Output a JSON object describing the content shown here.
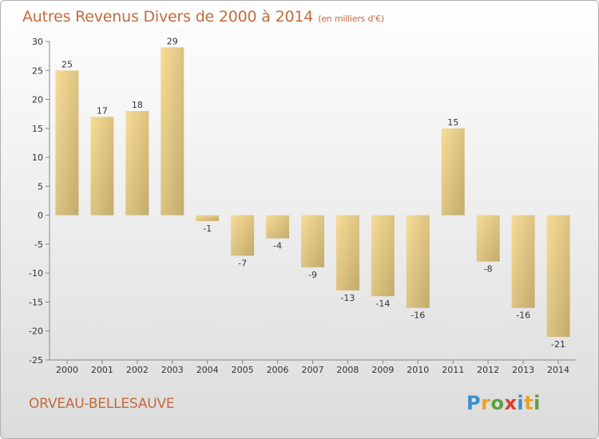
{
  "title": "Autres Revenus Divers de 2000 à 2014",
  "subtitle": "(en milliers d'€)",
  "commune": "ORVEAU-BELLESAUVE",
  "logo": {
    "letters": [
      "P",
      "r",
      "o",
      "x",
      "i",
      "t",
      "i"
    ],
    "colors": [
      "#3b8fd0",
      "#e8a41c",
      "#5aa23c",
      "#e23b2a",
      "#3b8fd0",
      "#e8a41c",
      "#5aa23c"
    ]
  },
  "colors": {
    "title": "#c36a3c",
    "bar_light": "#f7dc96",
    "bar_dark": "#c2ab6c"
  },
  "chart_data": {
    "type": "bar",
    "categories": [
      "2000",
      "2001",
      "2002",
      "2003",
      "2004",
      "2005",
      "2006",
      "2007",
      "2008",
      "2009",
      "2010",
      "2011",
      "2012",
      "2013",
      "2014"
    ],
    "values": [
      25,
      17,
      18,
      29,
      -1,
      -7,
      -4,
      -9,
      -13,
      -14,
      -16,
      15,
      -8,
      -16,
      -21
    ],
    "value_labels": [
      "25",
      "17",
      "18",
      "29",
      "-1",
      "-7",
      "-4",
      "-9",
      "-13",
      "-14",
      "-16",
      "15",
      "-8",
      "-16",
      "-21"
    ],
    "yticks": [
      30,
      25,
      20,
      15,
      10,
      5,
      0,
      -5,
      -10,
      -15,
      -20,
      -25
    ],
    "ytick_labels": [
      "30",
      "25",
      "20",
      "15",
      "10",
      "5",
      "0",
      "-5",
      "-10",
      "-15",
      "-20",
      "-25"
    ],
    "ylim": [
      -25,
      30
    ],
    "grid": false,
    "legend": "none"
  }
}
